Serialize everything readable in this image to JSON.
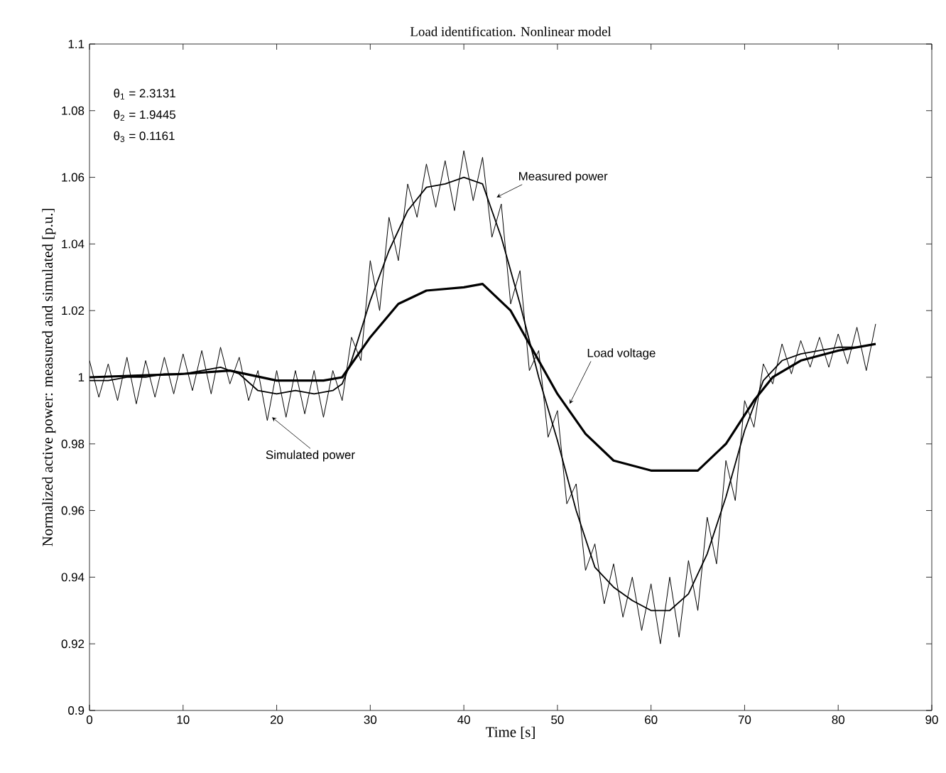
{
  "chart_data": {
    "type": "line",
    "title": "Load identification. Nonlinear model",
    "xlabel": "Time [s]",
    "ylabel": "Normalized active power: measured and simulated [p.u.]",
    "xlim": [
      0,
      90
    ],
    "ylim": [
      0.9,
      1.1
    ],
    "xticks": [
      0,
      10,
      20,
      30,
      40,
      50,
      60,
      70,
      80,
      90
    ],
    "yticks": [
      0.9,
      0.92,
      0.94,
      0.96,
      0.98,
      1,
      1.02,
      1.04,
      1.06,
      1.08,
      1.1
    ],
    "grid": false,
    "legend": false,
    "marker": "none",
    "line_style": "solid",
    "series": [
      {
        "color": "#000000",
        "x": [
          0,
          1,
          2,
          3,
          4,
          5,
          6,
          7,
          8,
          9,
          10,
          11,
          12,
          13,
          14,
          15,
          16,
          17,
          18,
          19,
          20,
          21,
          22,
          23,
          24,
          25,
          26,
          27,
          28,
          29,
          30,
          31,
          32,
          33,
          34,
          35,
          36,
          37,
          38,
          39,
          40,
          41,
          42,
          43,
          44,
          45,
          46,
          47,
          48,
          49,
          50,
          51,
          52,
          53,
          54,
          55,
          56,
          57,
          58,
          59,
          60,
          61,
          62,
          63,
          64,
          65,
          66,
          67,
          68,
          69,
          70,
          71,
          72,
          73,
          74,
          75,
          76,
          77,
          78,
          79,
          80,
          81,
          82,
          83,
          84
        ],
        "values": [
          1.005,
          0.994,
          1.004,
          0.993,
          1.006,
          0.992,
          1.005,
          0.994,
          1.006,
          0.995,
          1.007,
          0.996,
          1.008,
          0.995,
          1.009,
          0.998,
          1.006,
          0.993,
          1.002,
          0.987,
          1.002,
          0.988,
          1.002,
          0.989,
          1.002,
          0.988,
          1.002,
          0.993,
          1.012,
          1.005,
          1.035,
          1.02,
          1.048,
          1.035,
          1.058,
          1.048,
          1.064,
          1.051,
          1.065,
          1.05,
          1.068,
          1.053,
          1.066,
          1.042,
          1.052,
          1.022,
          1.032,
          1.002,
          1.008,
          0.982,
          0.99,
          0.962,
          0.968,
          0.942,
          0.95,
          0.932,
          0.944,
          0.928,
          0.94,
          0.924,
          0.938,
          0.92,
          0.94,
          0.922,
          0.945,
          0.93,
          0.958,
          0.944,
          0.975,
          0.963,
          0.993,
          0.985,
          1.004,
          0.998,
          1.01,
          1.001,
          1.011,
          1.003,
          1.012,
          1.003,
          1.013,
          1.004,
          1.015,
          1.002,
          1.016
        ]
      },
      {
        "color": "#000000",
        "x": [
          0,
          2,
          4,
          6,
          8,
          10,
          12,
          14,
          16,
          18,
          20,
          22,
          24,
          26,
          27,
          28,
          30,
          32,
          34,
          36,
          38,
          40,
          42,
          44,
          46,
          48,
          50,
          52,
          54,
          56,
          58,
          60,
          62,
          64,
          66,
          68,
          70,
          72,
          74,
          76,
          78,
          80,
          82,
          84
        ],
        "values": [
          0.999,
          0.999,
          1.0,
          1.0,
          1.001,
          1.001,
          1.002,
          1.003,
          1.001,
          0.996,
          0.995,
          0.996,
          0.995,
          0.996,
          0.998,
          1.005,
          1.023,
          1.038,
          1.05,
          1.057,
          1.058,
          1.06,
          1.058,
          1.042,
          1.022,
          1.0,
          0.981,
          0.96,
          0.943,
          0.937,
          0.933,
          0.93,
          0.93,
          0.935,
          0.947,
          0.964,
          0.984,
          0.999,
          1.005,
          1.007,
          1.008,
          1.009,
          1.009,
          1.01
        ]
      },
      {
        "color": "#000000",
        "x": [
          0,
          10,
          15,
          20,
          25,
          27,
          30,
          33,
          36,
          40,
          42,
          45,
          48,
          50,
          53,
          56,
          60,
          65,
          68,
          71,
          73,
          76,
          80,
          84
        ],
        "values": [
          1.0,
          1.001,
          1.002,
          0.999,
          0.999,
          1.0,
          1.012,
          1.022,
          1.026,
          1.027,
          1.028,
          1.02,
          1.005,
          0.995,
          0.983,
          0.975,
          0.972,
          0.972,
          0.98,
          0.993,
          1.0,
          1.005,
          1.008,
          1.01
        ]
      }
    ],
    "annotations": [
      "θ$_{1}$ = 2.3131",
      "θ$_{2}$ = 1.9445",
      "θ$_{3}$ = 0.1161",
      {
        "text": "Measured power",
        "x": 43.5,
        "y": 1.054
      },
      {
        "text": "Load voltage",
        "x": 51.3,
        "y": 0.992
      },
      {
        "text": "Simulated power",
        "x": 19.5,
        "y": 0.988
      }
    ]
  }
}
